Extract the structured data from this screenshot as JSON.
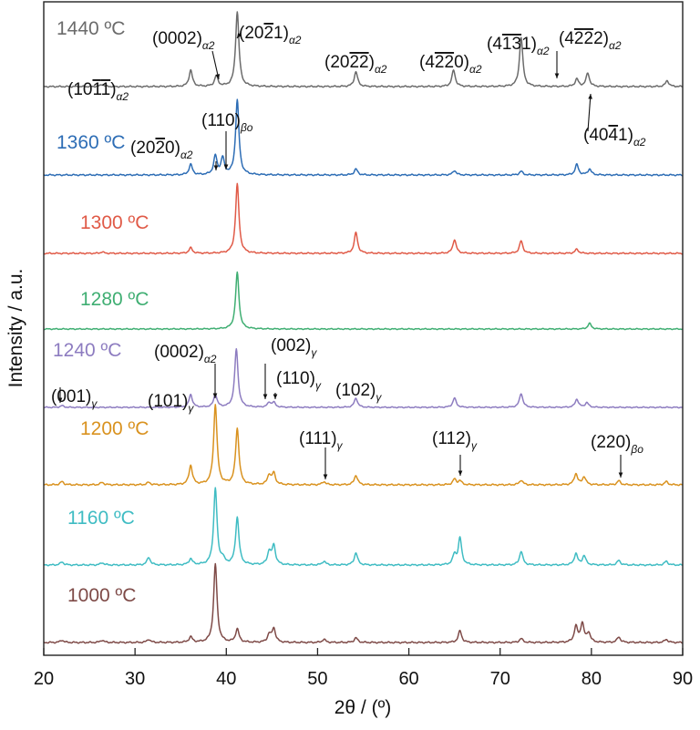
{
  "chart_data": {
    "type": "line",
    "xlabel": "2θ / (º)",
    "ylabel": "Intensity / a.u.",
    "xlim": [
      20,
      90
    ],
    "x_ticks": [
      "20",
      "30",
      "40",
      "50",
      "60",
      "70",
      "80",
      "90"
    ],
    "grid": false,
    "legend": "none",
    "series": [
      {
        "name": "1440 ºC",
        "color": "#6b6b6b",
        "peaks": [
          [
            26.4,
            0.03
          ],
          [
            36.1,
            0.22
          ],
          [
            38.9,
            0.14
          ],
          [
            41.2,
            1.0
          ],
          [
            54.2,
            0.2
          ],
          [
            64.9,
            0.22
          ],
          [
            72.3,
            0.66
          ],
          [
            78.4,
            0.1
          ],
          [
            79.6,
            0.18
          ],
          [
            88.3,
            0.08
          ]
        ]
      },
      {
        "name": "1360 ºC",
        "color": "#2d6db5",
        "peaks": [
          [
            36.1,
            0.14
          ],
          [
            38.8,
            0.25
          ],
          [
            39.6,
            0.22
          ],
          [
            41.2,
            1.0
          ],
          [
            54.2,
            0.08
          ],
          [
            65.0,
            0.06
          ],
          [
            72.3,
            0.05
          ],
          [
            78.4,
            0.14
          ],
          [
            79.8,
            0.08
          ]
        ]
      },
      {
        "name": "1300 ºC",
        "color": "#e05a47",
        "peaks": [
          [
            26.4,
            0.02
          ],
          [
            36.1,
            0.08
          ],
          [
            41.2,
            1.0
          ],
          [
            54.2,
            0.3
          ],
          [
            65.0,
            0.2
          ],
          [
            72.3,
            0.18
          ],
          [
            78.4,
            0.06
          ]
        ]
      },
      {
        "name": "1280 ºC",
        "color": "#3fae72",
        "peaks": [
          [
            41.2,
            1.0
          ],
          [
            79.8,
            0.1
          ]
        ]
      },
      {
        "name": "1240 ºC",
        "color": "#8d7cc0",
        "peaks": [
          [
            22.0,
            0.03
          ],
          [
            36.1,
            0.22
          ],
          [
            38.8,
            0.22
          ],
          [
            41.1,
            1.0
          ],
          [
            44.7,
            0.08
          ],
          [
            45.2,
            0.08
          ],
          [
            54.2,
            0.16
          ],
          [
            65.0,
            0.16
          ],
          [
            72.3,
            0.24
          ],
          [
            78.4,
            0.14
          ],
          [
            79.5,
            0.08
          ]
        ]
      },
      {
        "name": "1200 ºC",
        "color": "#d9921f",
        "peaks": [
          [
            22.0,
            0.04
          ],
          [
            26.4,
            0.03
          ],
          [
            31.5,
            0.03
          ],
          [
            36.1,
            0.24
          ],
          [
            38.8,
            1.0
          ],
          [
            41.2,
            0.7
          ],
          [
            44.7,
            0.12
          ],
          [
            45.2,
            0.14
          ],
          [
            50.7,
            0.04
          ],
          [
            54.2,
            0.12
          ],
          [
            65.0,
            0.07
          ],
          [
            65.6,
            0.05
          ],
          [
            72.3,
            0.06
          ],
          [
            78.3,
            0.14
          ],
          [
            79.2,
            0.1
          ],
          [
            83.0,
            0.05
          ],
          [
            88.2,
            0.04
          ]
        ]
      },
      {
        "name": "1160 ºC",
        "color": "#3fbcc3",
        "peaks": [
          [
            22.0,
            0.04
          ],
          [
            26.4,
            0.03
          ],
          [
            31.5,
            0.1
          ],
          [
            36.1,
            0.08
          ],
          [
            38.8,
            1.0
          ],
          [
            39.6,
            0.07
          ],
          [
            41.2,
            0.62
          ],
          [
            44.7,
            0.17
          ],
          [
            45.2,
            0.25
          ],
          [
            50.7,
            0.05
          ],
          [
            54.2,
            0.16
          ],
          [
            65.0,
            0.13
          ],
          [
            65.6,
            0.35
          ],
          [
            72.3,
            0.18
          ],
          [
            78.3,
            0.15
          ],
          [
            79.2,
            0.12
          ],
          [
            83.0,
            0.06
          ],
          [
            88.2,
            0.05
          ]
        ]
      },
      {
        "name": "1000 ºC",
        "color": "#7e4a47",
        "peaks": [
          [
            22.0,
            0.03
          ],
          [
            26.4,
            0.03
          ],
          [
            31.5,
            0.04
          ],
          [
            36.1,
            0.07
          ],
          [
            38.8,
            1.0
          ],
          [
            41.2,
            0.17
          ],
          [
            44.7,
            0.1
          ],
          [
            45.2,
            0.18
          ],
          [
            50.7,
            0.04
          ],
          [
            54.2,
            0.06
          ],
          [
            65.6,
            0.15
          ],
          [
            72.3,
            0.05
          ],
          [
            78.3,
            0.2
          ],
          [
            79.0,
            0.24
          ],
          [
            79.7,
            0.12
          ],
          [
            83.0,
            0.07
          ],
          [
            88.2,
            0.04
          ]
        ]
      }
    ],
    "annotations": [
      {
        "base": "(10",
        "bar": "1",
        "tail": "",
        "bar2": "1",
        "end": ")",
        "sub": "α2"
      },
      {
        "base": "(0002)",
        "sub": "α2"
      },
      {
        "base": "(20",
        "bar": "2",
        "tail": "1)",
        "sub": "α2"
      },
      {
        "base": "(20",
        "bar": "2",
        "tail": "",
        "bar2": "2",
        "end": ")",
        "sub": "α2"
      },
      {
        "base": "(4",
        "bar": "2",
        "tail": "",
        "bar2": "2",
        "end": "0)",
        "sub": "α2"
      },
      {
        "base": "(4",
        "bar": "1",
        "tail": "",
        "bar2": "3",
        "end": "1)",
        "sub": "α2"
      },
      {
        "base": "(4",
        "bar": "2",
        "tail": "",
        "bar2": "2",
        "end": "2)",
        "sub": "α2"
      },
      {
        "base": "(40",
        "bar": "4",
        "tail": "1)",
        "sub": "α2"
      },
      {
        "base": "(110)",
        "sub": "βo"
      },
      {
        "base": "(20",
        "bar": "2",
        "tail": "0)",
        "sub": "α2"
      },
      {
        "base": "(0002)",
        "sub": "α2"
      },
      {
        "base": "(002)",
        "sub": "γ"
      },
      {
        "base": "(001)",
        "sub": "γ"
      },
      {
        "base": "(101)",
        "sub": "γ"
      },
      {
        "base": "(110)",
        "sub": "γ"
      },
      {
        "base": "(102)",
        "sub": "γ"
      },
      {
        "base": "(111)",
        "sub": "γ"
      },
      {
        "base": "(112)",
        "sub": "γ"
      },
      {
        "base": "(220)",
        "sub": "βo"
      }
    ]
  }
}
